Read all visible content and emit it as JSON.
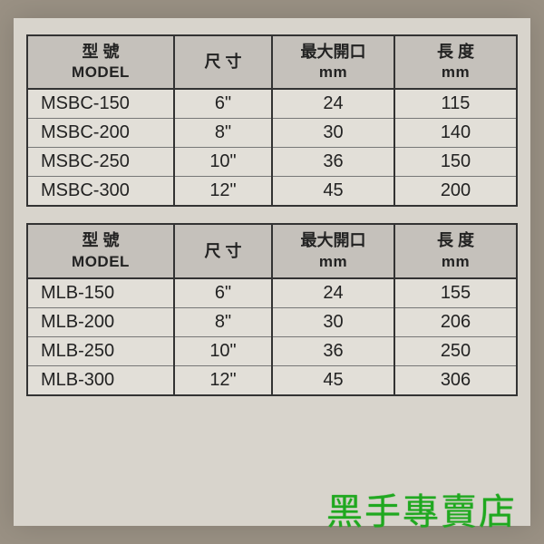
{
  "columns": {
    "model_cn": "型 號",
    "model_en": "MODEL",
    "size": "尺 寸",
    "open_cn": "最大開口",
    "open_unit": "mm",
    "length_cn": "長  度",
    "length_unit": "mm"
  },
  "tables": [
    {
      "rows": [
        {
          "model": "MSBC-150",
          "size": "6\"",
          "open": "24",
          "length": "115"
        },
        {
          "model": "MSBC-200",
          "size": "8\"",
          "open": "30",
          "length": "140"
        },
        {
          "model": "MSBC-250",
          "size": "10\"",
          "open": "36",
          "length": "150"
        },
        {
          "model": "MSBC-300",
          "size": "12\"",
          "open": "45",
          "length": "200"
        }
      ]
    },
    {
      "rows": [
        {
          "model": "MLB-150",
          "size": "6\"",
          "open": "24",
          "length": "155"
        },
        {
          "model": "MLB-200",
          "size": "8\"",
          "open": "30",
          "length": "206"
        },
        {
          "model": "MLB-250",
          "size": "10\"",
          "open": "36",
          "length": "250"
        },
        {
          "model": "MLB-300",
          "size": "12\"",
          "open": "45",
          "length": "306"
        }
      ]
    }
  ],
  "watermark": "黑手專賣店",
  "style": {
    "page_bg": "#9a9184",
    "sheet_bg": "#d8d4cc",
    "header_bg": "#c5c1bb",
    "cell_bg": "#e2dfd8",
    "border_color": "#333333",
    "text_color": "#222222",
    "watermark_color": "#1fa81f",
    "header_fontsize": 18,
    "cell_fontsize": 20,
    "watermark_fontsize": 40
  }
}
